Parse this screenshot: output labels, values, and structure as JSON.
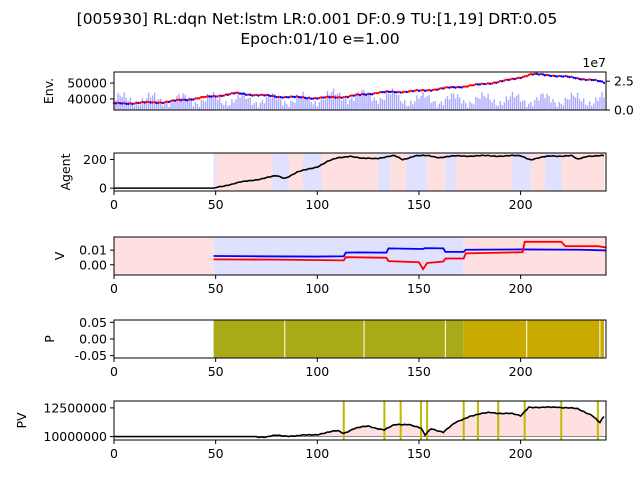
{
  "figure": {
    "title_line1": "[005930] RL:dqn Net:lstm LR:0.001 DF:0.9 TU:[1,19] DRT:0.05",
    "title_line2": "Epoch:01/10 e=1.00"
  },
  "colors": {
    "price_up": "#ff0000",
    "price_down": "#0000ff",
    "volume": "#aaaaff",
    "buy_bg": "#ffe0e0",
    "sell_bg": "#e0e0ff",
    "value_buy": "#ff0000",
    "value_sell": "#0000ff",
    "policy_fill": "#aaaa18",
    "policy_fill_late": "#c8aa00",
    "learning_line": "#bbbb00",
    "agent_line": "#000000"
  },
  "chart_data": [
    {
      "type": "line",
      "name": "env",
      "ylabel": "Env.",
      "xlim": [
        0,
        242
      ],
      "ylim": [
        33000,
        57000
      ],
      "yticks": [
        "40000",
        "50000"
      ],
      "yticks_values": [
        40000,
        50000
      ],
      "right_axis": {
        "offset_label": "1e7",
        "ticks": [
          "0.0",
          "2.5"
        ],
        "ticks_values": [
          0,
          2.5
        ],
        "ylim": [
          0,
          3.3
        ]
      },
      "price_keypoints": [
        [
          0,
          37000
        ],
        [
          25,
          38000
        ],
        [
          45,
          41000
        ],
        [
          60,
          43500
        ],
        [
          80,
          41500
        ],
        [
          100,
          40500
        ],
        [
          115,
          41500
        ],
        [
          130,
          44000
        ],
        [
          150,
          45000
        ],
        [
          165,
          47000
        ],
        [
          180,
          49000
        ],
        [
          195,
          52000
        ],
        [
          205,
          55500
        ],
        [
          215,
          55000
        ],
        [
          225,
          53500
        ],
        [
          235,
          52000
        ],
        [
          242,
          50000
        ]
      ],
      "volume_scale_max_1e7": 3.3
    },
    {
      "type": "line",
      "name": "agent",
      "ylabel": "Agent",
      "xlim": [
        0,
        242
      ],
      "ylim": [
        -20,
        245
      ],
      "yticks": [
        "0",
        "200"
      ],
      "yticks_values": [
        0,
        200
      ],
      "xticks": [
        "0",
        "50",
        "100",
        "150",
        "200"
      ],
      "xticks_values": [
        0,
        50,
        100,
        150,
        200
      ],
      "keypoints": [
        [
          0,
          0
        ],
        [
          49,
          0
        ],
        [
          55,
          20
        ],
        [
          62,
          40
        ],
        [
          70,
          60
        ],
        [
          80,
          85
        ],
        [
          84,
          70
        ],
        [
          90,
          110
        ],
        [
          100,
          150
        ],
        [
          105,
          185
        ],
        [
          110,
          210
        ],
        [
          116,
          225
        ],
        [
          122,
          205
        ],
        [
          130,
          210
        ],
        [
          138,
          225
        ],
        [
          142,
          200
        ],
        [
          148,
          225
        ],
        [
          155,
          225
        ],
        [
          160,
          215
        ],
        [
          170,
          225
        ],
        [
          185,
          225
        ],
        [
          200,
          225
        ],
        [
          205,
          200
        ],
        [
          215,
          225
        ],
        [
          225,
          225
        ],
        [
          228,
          200
        ],
        [
          233,
          225
        ],
        [
          241,
          225
        ]
      ]
    },
    {
      "type": "line",
      "name": "value",
      "ylabel": "V",
      "xlim": [
        0,
        242
      ],
      "ylim": [
        -0.007,
        0.019
      ],
      "yticks": [
        "0.00",
        "0.01"
      ],
      "yticks_values": [
        0,
        0.01
      ],
      "xticks": [
        "0",
        "50",
        "100",
        "150",
        "200"
      ],
      "xticks_values": [
        0,
        50,
        100,
        150,
        200
      ],
      "series": [
        {
          "color_key": "value_sell",
          "points": [
            [
              49,
              0.006
            ],
            [
              70,
              0.0058
            ],
            [
              100,
              0.0056
            ],
            [
              113,
              0.0058
            ],
            [
              114,
              0.0083
            ],
            [
              120,
              0.0085
            ],
            [
              134,
              0.0083
            ],
            [
              135,
              0.0112
            ],
            [
              152,
              0.0108
            ],
            [
              153,
              0.0114
            ],
            [
              162,
              0.0112
            ],
            [
              163,
              0.0088
            ],
            [
              172,
              0.0088
            ],
            [
              173,
              0.0103
            ],
            [
              200,
              0.0105
            ],
            [
              230,
              0.0103
            ],
            [
              242,
              0.0098
            ]
          ]
        },
        {
          "color_key": "value_buy",
          "points": [
            [
              49,
              0.0037
            ],
            [
              80,
              0.0035
            ],
            [
              113,
              0.003
            ],
            [
              114,
              0.0052
            ],
            [
              134,
              0.0048
            ],
            [
              135,
              0.0025
            ],
            [
              150,
              0.0017
            ],
            [
              152,
              -0.003
            ],
            [
              154,
              0.0012
            ],
            [
              162,
              0.0022
            ],
            [
              163,
              0.0043
            ],
            [
              172,
              0.0043
            ],
            [
              173,
              0.0078
            ],
            [
              201,
              0.0086
            ],
            [
              202,
              0.0157
            ],
            [
              220,
              0.0157
            ],
            [
              222,
              0.0127
            ],
            [
              238,
              0.0127
            ],
            [
              242,
              0.0118
            ]
          ]
        }
      ]
    },
    {
      "type": "area",
      "name": "policy",
      "ylabel": "P",
      "xlim": [
        0,
        242
      ],
      "ylim": [
        -0.057,
        0.057
      ],
      "yticks": [
        "-0.05",
        "0.00",
        "0.05"
      ],
      "yticks_values": [
        -0.05,
        0,
        0.05
      ],
      "xticks": [
        "0",
        "50",
        "100",
        "150",
        "200"
      ],
      "xticks_values": [
        0,
        50,
        100,
        150,
        200
      ],
      "fill_range": [
        49,
        241
      ],
      "late_color_from": 172,
      "separators": [
        84,
        123,
        163,
        203,
        239
      ]
    },
    {
      "type": "line",
      "name": "pv",
      "ylabel": "PV",
      "xlim": [
        0,
        242
      ],
      "ylim": [
        9700000,
        13100000
      ],
      "yticks": [
        "10000000",
        "12500000"
      ],
      "yticks_values": [
        10000000,
        12500000
      ],
      "xticks": [
        "0",
        "50",
        "100",
        "150",
        "200"
      ],
      "xticks_values": [
        0,
        50,
        100,
        150,
        200
      ],
      "baseline": 10000000,
      "learning_points": [
        113,
        133,
        141,
        151,
        154,
        172,
        179,
        189,
        202,
        220,
        238
      ],
      "keypoints": [
        [
          0,
          10000000
        ],
        [
          70,
          10000000
        ],
        [
          75,
          9950000
        ],
        [
          80,
          10100000
        ],
        [
          90,
          10050000
        ],
        [
          100,
          10200000
        ],
        [
          110,
          10500000
        ],
        [
          113,
          10300000
        ],
        [
          118,
          10700000
        ],
        [
          125,
          10900000
        ],
        [
          133,
          10600000
        ],
        [
          138,
          11000000
        ],
        [
          145,
          11100000
        ],
        [
          151,
          10700000
        ],
        [
          153,
          10100000
        ],
        [
          156,
          10700000
        ],
        [
          162,
          10400000
        ],
        [
          168,
          11200000
        ],
        [
          175,
          11800000
        ],
        [
          185,
          12100000
        ],
        [
          195,
          12000000
        ],
        [
          200,
          11800000
        ],
        [
          204,
          12600000
        ],
        [
          210,
          12500000
        ],
        [
          218,
          12600000
        ],
        [
          228,
          12400000
        ],
        [
          235,
          11900000
        ],
        [
          239,
          11200000
        ],
        [
          242,
          12000000
        ]
      ]
    }
  ]
}
